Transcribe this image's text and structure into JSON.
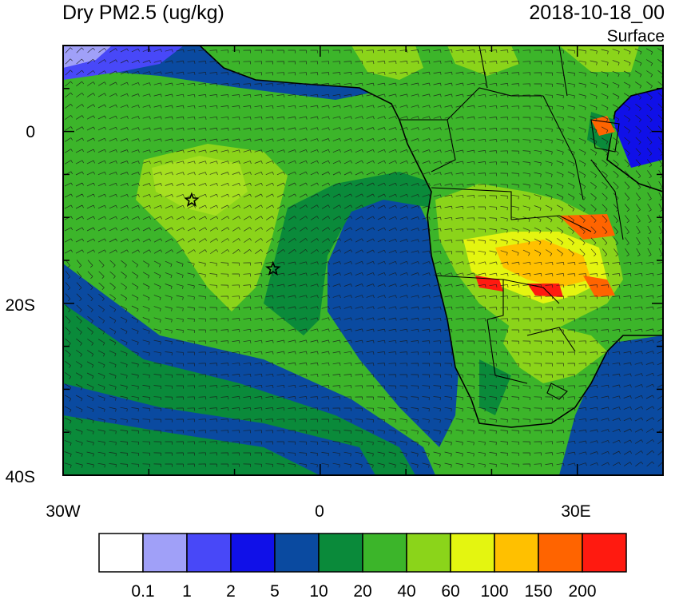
{
  "header": {
    "title": "Dry PM2.5 (ug/kg)",
    "datetime": "2018-10-18_00",
    "level": "Surface"
  },
  "axes": {
    "x_ticks": [
      {
        "value": -30,
        "label": "30W"
      },
      {
        "value": 0,
        "label": "0"
      },
      {
        "value": 30,
        "label": "30E"
      }
    ],
    "y_ticks": [
      {
        "value": 0,
        "label": "0"
      },
      {
        "value": -20,
        "label": "20S"
      },
      {
        "value": -40,
        "label": "40S"
      }
    ],
    "lon_range": [
      -30,
      40
    ],
    "lat_range": [
      -40,
      10
    ]
  },
  "colorbar": {
    "colors": [
      "#ffffff",
      "#a0a0f8",
      "#4848f8",
      "#1010e8",
      "#0a4aa0",
      "#0a8a3a",
      "#3cb52a",
      "#8bd41a",
      "#e4f510",
      "#ffc000",
      "#ff6400",
      "#ff1a10"
    ],
    "labels": [
      "0.1",
      "1",
      "2",
      "5",
      "10",
      "20",
      "40",
      "60",
      "100",
      "150",
      "200"
    ]
  },
  "markers": [
    {
      "name": "star-1",
      "lon": -15,
      "lat": -8
    },
    {
      "name": "star-2",
      "lon": -5.5,
      "lat": -16
    }
  ]
}
